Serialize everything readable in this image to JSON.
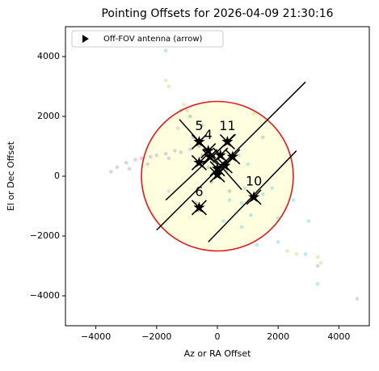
{
  "chart_data": {
    "type": "scatter",
    "title": "Pointing Offsets for 2026-04-09 21:30:16",
    "x_label": "Az or RA Offset",
    "y_label": "El or Dec Offset",
    "xlim": [
      -5000,
      5000
    ],
    "ylim": [
      -5000,
      5000
    ],
    "xticks": [
      {
        "value": -4000,
        "label": "−4000"
      },
      {
        "value": -2000,
        "label": "−2000"
      },
      0,
      2000,
      4000
    ],
    "yticks": [
      {
        "value": -4000,
        "label": "−4000"
      },
      {
        "value": -2000,
        "label": "−2000"
      },
      0,
      2000,
      4000
    ],
    "legend": {
      "label": "Off-FOV antenna (arrow)",
      "loc": "upper left"
    },
    "circle": {
      "x": 0,
      "y": 0,
      "r": 2500,
      "edge_color": "#e31a1c",
      "face_color": "#ffffe0"
    },
    "series": [
      {
        "color": "#9467bd",
        "x": [
          -3500,
          -3300,
          -3000,
          -2700,
          -2500,
          -2200,
          -2000,
          -1700,
          -1400,
          -1200,
          -900,
          -2900,
          -2300,
          -1600
        ],
        "y": [
          150,
          300,
          450,
          550,
          600,
          650,
          700,
          750,
          850,
          800,
          900,
          250,
          400,
          600
        ]
      },
      {
        "color": "#8c564b",
        "x": [
          -700,
          -600,
          -650,
          -580,
          -700,
          -500,
          -300,
          -800
        ],
        "y": [
          1200,
          1000,
          -1000,
          -1150,
          -900,
          700,
          900,
          1300
        ]
      },
      {
        "color": "#2ca02c",
        "x": [
          -1200,
          -900,
          -500,
          -300,
          0,
          300,
          -200,
          400
        ],
        "y": [
          2200,
          2000,
          1700,
          300,
          500,
          200,
          -200,
          -500
        ]
      },
      {
        "color": "#17becf",
        "x": [
          400,
          800,
          1100,
          1500,
          200,
          900,
          1800,
          2000,
          700,
          1000,
          2500,
          2900,
          3300,
          3000,
          2000,
          1300,
          800,
          -1700
        ],
        "y": [
          -800,
          -900,
          -1300,
          -600,
          -1500,
          -400,
          -400,
          -1400,
          700,
          400,
          -800,
          -2600,
          -3600,
          -1500,
          -2200,
          -2300,
          -1700,
          4200
        ]
      },
      {
        "color": "#bcbd22",
        "x": [
          -1700,
          -1600,
          2300,
          2600,
          3300,
          3400,
          -1100,
          1200
        ],
        "y": [
          3200,
          3000,
          -2500,
          -2600,
          -2700,
          -2900,
          2400,
          2100
        ]
      },
      {
        "color": "#7f7f7f",
        "x": [
          4600,
          3300,
          1500
        ],
        "y": [
          -4100,
          -3000,
          1300
        ]
      },
      {
        "color": "#e377c2",
        "x": [
          -1300,
          -1000,
          -1600
        ],
        "y": [
          1600,
          2200,
          -500
        ]
      }
    ],
    "lines": [
      {
        "x": [
          -2000,
          2900
        ],
        "y": [
          -1800,
          3150
        ]
      },
      {
        "x": [
          -300,
          2600
        ],
        "y": [
          -2200,
          850
        ]
      },
      {
        "x": [
          -1700,
          600
        ],
        "y": [
          -800,
          1400
        ]
      },
      {
        "x": [
          -1250,
          800
        ],
        "y": [
          1900,
          -450
        ]
      }
    ],
    "stars": {
      "x": [
        -600,
        -300,
        330,
        -600,
        1200,
        -600,
        100,
        0,
        0,
        500,
        -250,
        250
      ],
      "y": [
        1150,
        850,
        1150,
        -1050,
        -700,
        450,
        700,
        250,
        50,
        650,
        650,
        350
      ],
      "labels": [
        "5",
        "4",
        "11",
        "6",
        "10",
        null,
        null,
        null,
        null,
        null,
        null,
        null
      ]
    }
  }
}
